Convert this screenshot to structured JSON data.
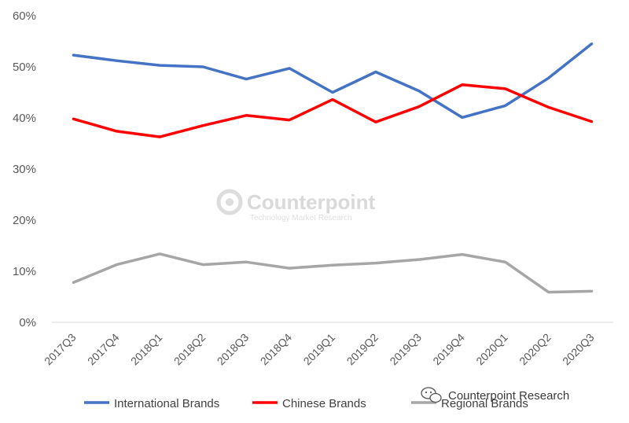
{
  "chart_data": {
    "type": "line",
    "categories": [
      "2017Q3",
      "2017Q4",
      "2018Q1",
      "2018Q2",
      "2018Q3",
      "2018Q4",
      "2019Q1",
      "2019Q2",
      "2019Q3",
      "2019Q4",
      "2020Q1",
      "2020Q2",
      "2020Q3"
    ],
    "series": [
      {
        "name": "International Brands",
        "color": "#4472c4",
        "values": [
          52.3,
          51.2,
          50.3,
          50.0,
          47.6,
          49.7,
          45.0,
          49.0,
          45.3,
          40.1,
          42.4,
          47.8,
          54.5
        ]
      },
      {
        "name": "Chinese Brands",
        "color": "#ff0000",
        "values": [
          39.8,
          37.4,
          36.3,
          38.5,
          40.5,
          39.6,
          43.6,
          39.2,
          42.2,
          46.5,
          45.7,
          42.1,
          39.3
        ]
      },
      {
        "name": "Regional Brands",
        "color": "#a6a6a6",
        "values": [
          7.8,
          11.3,
          13.4,
          11.3,
          11.8,
          10.6,
          11.2,
          11.6,
          12.3,
          13.3,
          11.8,
          5.9,
          6.1
        ]
      }
    ],
    "y_ticks": [
      "0%",
      "10%",
      "20%",
      "30%",
      "40%",
      "50%",
      "60%"
    ],
    "ylim": [
      0,
      60
    ],
    "grid": false,
    "legend_position": "bottom"
  },
  "watermark": {
    "brand": "Counterpoint",
    "tagline": "Technology Market Research"
  },
  "credit": {
    "text": "Counterpoint Research",
    "icon": "wechat-icon"
  }
}
